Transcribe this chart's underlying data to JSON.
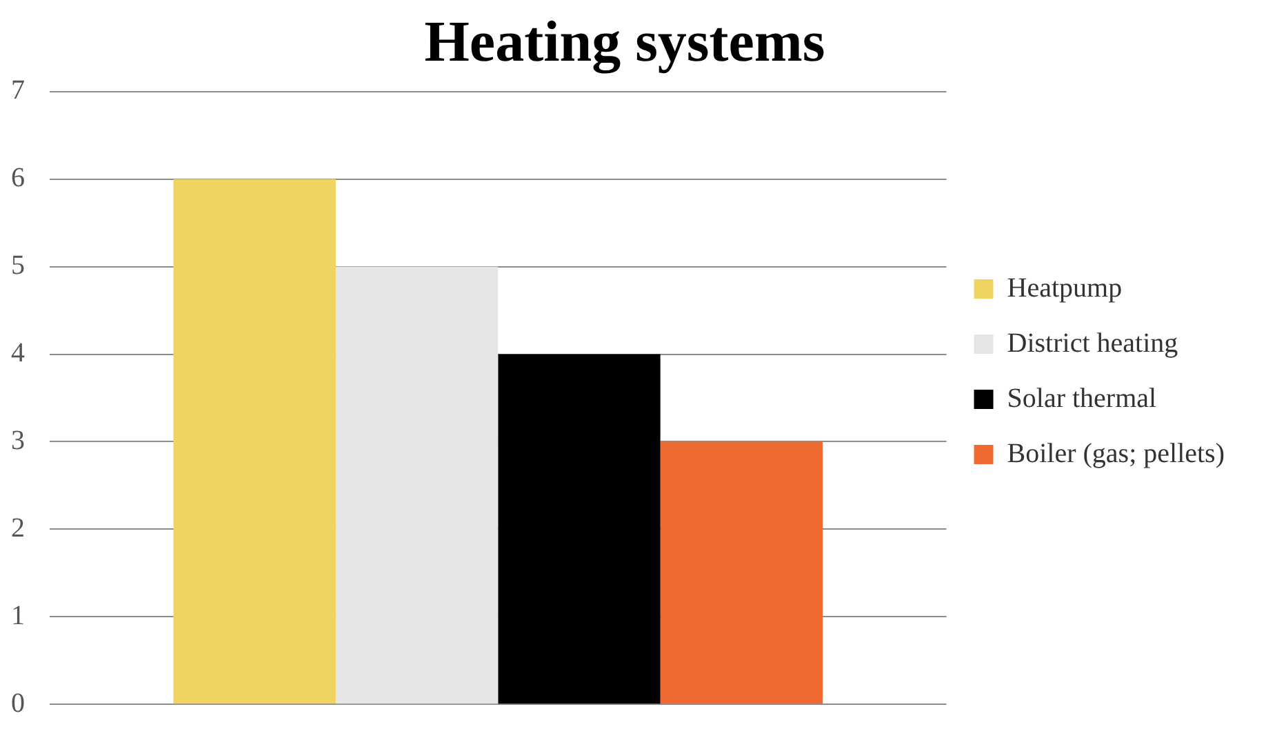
{
  "chart_data": {
    "type": "bar",
    "title": "Heating systems",
    "categories": [
      null
    ],
    "series": [
      {
        "name": "Heatpump",
        "color": "#f0d462",
        "values": [
          6
        ]
      },
      {
        "name": "District heating",
        "color": "#e6e6e6",
        "values": [
          5
        ]
      },
      {
        "name": "Solar thermal",
        "color": "#000000",
        "values": [
          4
        ]
      },
      {
        "name": "Boiler (gas; pellets)",
        "color": "#ee6a30",
        "values": [
          3
        ]
      }
    ],
    "ylim": [
      0,
      7
    ],
    "yticks": [
      0,
      1,
      2,
      3,
      4,
      5,
      6,
      7
    ],
    "grid": "y",
    "legend": "right"
  }
}
